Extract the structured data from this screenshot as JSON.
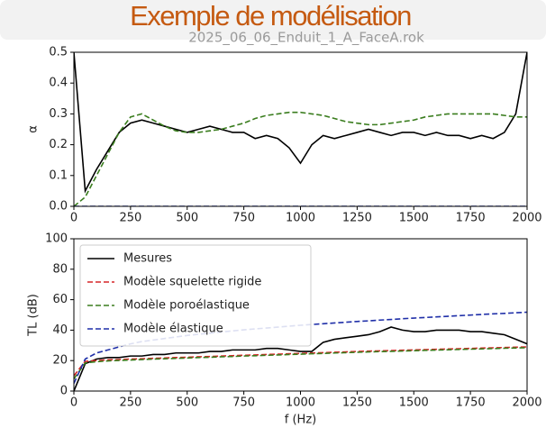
{
  "slide_title": "Exemple de modélisation",
  "chart_data": [
    {
      "type": "line",
      "title": "2025_06_06_Enduit_1_A_FaceA.rok",
      "ylabel": "α",
      "x": [
        0,
        50,
        100,
        150,
        200,
        250,
        300,
        350,
        400,
        450,
        500,
        550,
        600,
        650,
        700,
        750,
        800,
        850,
        900,
        950,
        1000,
        1050,
        1100,
        1150,
        1200,
        1250,
        1300,
        1350,
        1400,
        1450,
        1500,
        1550,
        1600,
        1650,
        1700,
        1750,
        1800,
        1850,
        1900,
        1950,
        2000
      ],
      "xlim": [
        0,
        2000
      ],
      "xticks": [
        0,
        250,
        500,
        750,
        1000,
        1250,
        1500,
        1750,
        2000
      ],
      "ylim": [
        0,
        0.5
      ],
      "yticks": [
        {
          "value": 0,
          "label": "0.0"
        },
        0.1,
        0.2,
        0.3,
        0.4,
        0.5
      ],
      "grid": false,
      "series": [
        {
          "name": "Mesures",
          "color": "#000000",
          "dashed": false,
          "values": [
            0.5,
            0.05,
            0.12,
            0.18,
            0.24,
            0.27,
            0.28,
            0.27,
            0.26,
            0.25,
            0.24,
            0.25,
            0.26,
            0.25,
            0.24,
            0.24,
            0.22,
            0.23,
            0.22,
            0.19,
            0.14,
            0.2,
            0.23,
            0.22,
            0.23,
            0.24,
            0.25,
            0.24,
            0.23,
            0.24,
            0.24,
            0.23,
            0.24,
            0.23,
            0.23,
            0.22,
            0.23,
            0.22,
            0.24,
            0.3,
            0.5
          ]
        },
        {
          "name": "Modèle poroélastique",
          "color": "#3a7d1e",
          "dashed": true,
          "values": [
            0,
            0.03,
            0.1,
            0.17,
            0.24,
            0.29,
            0.3,
            0.28,
            0.26,
            0.245,
            0.24,
            0.24,
            0.245,
            0.25,
            0.26,
            0.27,
            0.285,
            0.295,
            0.3,
            0.305,
            0.305,
            0.3,
            0.295,
            0.285,
            0.275,
            0.27,
            0.265,
            0.265,
            0.27,
            0.275,
            0.28,
            0.29,
            0.295,
            0.3,
            0.3,
            0.3,
            0.3,
            0.3,
            0.295,
            0.29,
            0.29
          ]
        },
        {
          "name": "Modèle élastique",
          "color": "#1f2fa8",
          "dashed": true,
          "values": [
            0,
            0,
            0,
            0,
            0,
            0,
            0,
            0,
            0,
            0,
            0,
            0,
            0,
            0,
            0,
            0,
            0,
            0,
            0,
            0,
            0,
            0,
            0,
            0,
            0,
            0,
            0,
            0,
            0,
            0,
            0,
            0,
            0,
            0,
            0,
            0,
            0,
            0,
            0,
            0,
            0
          ]
        }
      ]
    },
    {
      "type": "line",
      "ylabel": "TL (dB)",
      "xlabel": "f (Hz)",
      "legend": "upper left",
      "x": [
        0,
        50,
        100,
        150,
        200,
        250,
        300,
        350,
        400,
        450,
        500,
        550,
        600,
        650,
        700,
        750,
        800,
        850,
        900,
        950,
        1000,
        1050,
        1100,
        1150,
        1200,
        1250,
        1300,
        1350,
        1400,
        1450,
        1500,
        1550,
        1600,
        1650,
        1700,
        1750,
        1800,
        1850,
        1900,
        1950,
        2000
      ],
      "xlim": [
        0,
        2000
      ],
      "xticks": [
        0,
        250,
        500,
        750,
        1000,
        1250,
        1500,
        1750,
        2000
      ],
      "ylim": [
        0,
        100
      ],
      "yticks": [
        0,
        20,
        40,
        60,
        80,
        100
      ],
      "grid": false,
      "series": [
        {
          "name": "Mesures",
          "color": "#000000",
          "dashed": false,
          "values": [
            0,
            18,
            21,
            22,
            22,
            23,
            23,
            24,
            24,
            25,
            25,
            25,
            26,
            26,
            27,
            27,
            27,
            28,
            28,
            27,
            26,
            26,
            32,
            34,
            35,
            36,
            37,
            39,
            42,
            40,
            39,
            39,
            40,
            40,
            40,
            39,
            39,
            38,
            37,
            34,
            31
          ]
        },
        {
          "name": "Modèle squelette rigide",
          "color": "#d62728",
          "dashed": true,
          "values": [
            10,
            19.5,
            20,
            20.5,
            20.7,
            21,
            21.2,
            21.5,
            21.7,
            22,
            22.2,
            22.5,
            22.7,
            23,
            23.2,
            23.5,
            23.7,
            24,
            24.2,
            24.5,
            24.7,
            25,
            25.2,
            25.5,
            25.7,
            26,
            26.2,
            26.4,
            26.6,
            26.8,
            27,
            27.2,
            27.4,
            27.6,
            27.8,
            28,
            28.2,
            28.4,
            28.6,
            28.8,
            29
          ]
        },
        {
          "name": "Modèle poroélastique",
          "color": "#3a7d1e",
          "dashed": true,
          "values": [
            8,
            18.5,
            19.3,
            19.8,
            20.1,
            20.4,
            20.7,
            21,
            21.2,
            21.5,
            21.7,
            22,
            22.2,
            22.5,
            22.7,
            23,
            23.2,
            23.5,
            23.7,
            24,
            24.2,
            24.5,
            24.7,
            25,
            25.2,
            25.5,
            25.7,
            25.9,
            26.1,
            26.3,
            26.5,
            26.7,
            26.9,
            27.1,
            27.3,
            27.5,
            27.7,
            27.9,
            28.1,
            28.3,
            28.5
          ]
        },
        {
          "name": "Modèle élastique",
          "color": "#1f2fa8",
          "dashed": true,
          "values": [
            5,
            21,
            25,
            27,
            29,
            31,
            32.5,
            33.5,
            34.5,
            35.5,
            36.5,
            37.3,
            38,
            38.8,
            39.5,
            40.2,
            40.8,
            41.4,
            42,
            42.6,
            43.2,
            43.7,
            44.2,
            44.7,
            45.2,
            45.7,
            46.1,
            46.6,
            47,
            47.5,
            47.9,
            48.3,
            48.7,
            49.1,
            49.5,
            49.9,
            50.3,
            50.7,
            51,
            51.4,
            51.8
          ]
        }
      ]
    }
  ]
}
